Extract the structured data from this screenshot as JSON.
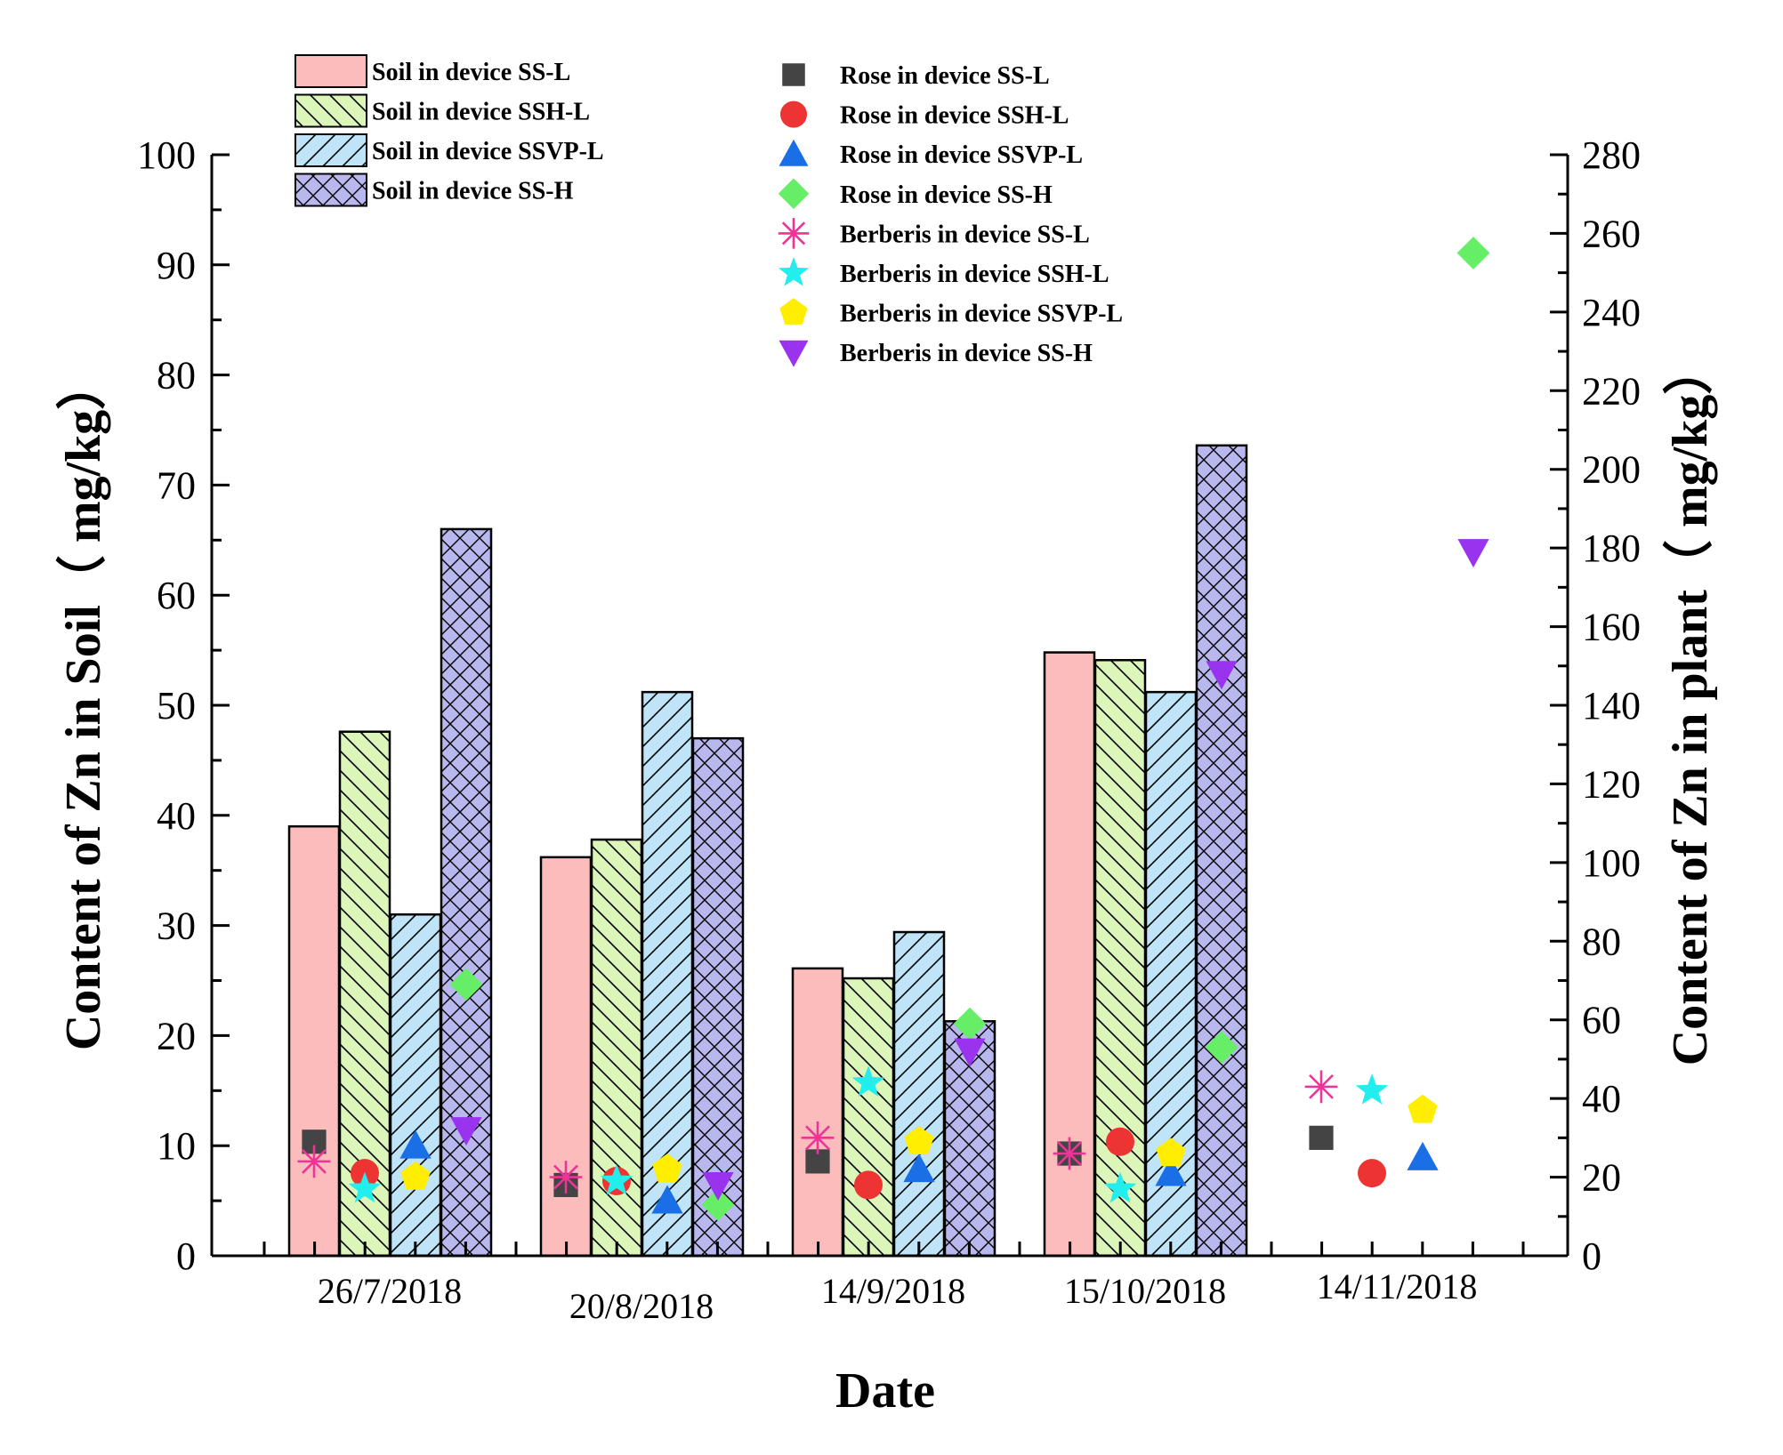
{
  "chart_data": {
    "type": "bar",
    "title": "",
    "xlabel": "Date",
    "ylabel": "Content of Zn in Soil（ mg/kg）",
    "y2label": "Content of Zn in plant（ mg/kg）",
    "ylim": [
      0,
      100
    ],
    "y2lim": [
      0,
      280
    ],
    "yticks": [
      0,
      10,
      20,
      30,
      40,
      50,
      60,
      70,
      80,
      90,
      100
    ],
    "y2ticks": [
      0,
      20,
      40,
      60,
      80,
      100,
      120,
      140,
      160,
      180,
      200,
      220,
      240,
      260,
      280
    ],
    "categories": [
      "26/7/2018",
      "20/8/2018",
      "14/9/2018",
      "15/10/2018",
      "14/11/2018"
    ],
    "series": [
      {
        "name": "Soil in device SS-L",
        "axis": "left",
        "kind": "bar",
        "color": "#fcbcbc",
        "pattern": "none",
        "values": [
          39.0,
          36.2,
          26.1,
          54.8,
          null
        ]
      },
      {
        "name": "Soil in device SSH-L",
        "axis": "left",
        "kind": "bar",
        "color": "#dcf5b8",
        "pattern": "backslash",
        "values": [
          47.6,
          37.8,
          25.2,
          54.1,
          null
        ]
      },
      {
        "name": "Soil in device SSVP-L",
        "axis": "left",
        "kind": "bar",
        "color": "#bfe4f7",
        "pattern": "slash",
        "values": [
          31.0,
          51.2,
          29.4,
          51.2,
          null
        ]
      },
      {
        "name": "Soil in device SS-H",
        "axis": "left",
        "kind": "bar",
        "color": "#b8b8ef",
        "pattern": "cross",
        "values": [
          66.0,
          47.0,
          21.3,
          73.6,
          null
        ]
      },
      {
        "name": "Rose in device SS-L",
        "axis": "right",
        "kind": "marker",
        "marker": "square",
        "color": "#444444",
        "values": [
          29,
          18,
          24,
          26,
          30
        ]
      },
      {
        "name": "Rose in device SSH-L",
        "axis": "right",
        "kind": "marker",
        "marker": "circle",
        "color": "#ee3333",
        "values": [
          21,
          19,
          18,
          29,
          21
        ]
      },
      {
        "name": "Rose in device SSVP-L",
        "axis": "right",
        "kind": "marker",
        "marker": "triangle-up",
        "color": "#1a6ee6",
        "values": [
          28,
          14,
          22,
          21,
          25
        ]
      },
      {
        "name": "Rose in device SS-H",
        "axis": "right",
        "kind": "marker",
        "marker": "diamond",
        "color": "#66ee66",
        "values": [
          69,
          13,
          59,
          53,
          255
        ]
      },
      {
        "name": "Berberis in device SS-L",
        "axis": "right",
        "kind": "marker",
        "marker": "asterisk",
        "color": "#ee3399",
        "values": [
          24,
          20,
          30,
          26,
          43
        ]
      },
      {
        "name": "Berberis in device SSH-L",
        "axis": "right",
        "kind": "marker",
        "marker": "star",
        "color": "#22eeee",
        "values": [
          17,
          19,
          44,
          17,
          42
        ]
      },
      {
        "name": "Berberis in device SSVP-L",
        "axis": "right",
        "kind": "marker",
        "marker": "pentagon",
        "color": "#ffee00",
        "values": [
          20,
          22,
          29,
          26,
          37
        ]
      },
      {
        "name": "Berberis in device SS-H",
        "axis": "right",
        "kind": "marker",
        "marker": "triangle-down",
        "color": "#9933ee",
        "values": [
          32,
          18,
          52,
          148,
          179
        ]
      }
    ],
    "legend_position": "top-center"
  }
}
